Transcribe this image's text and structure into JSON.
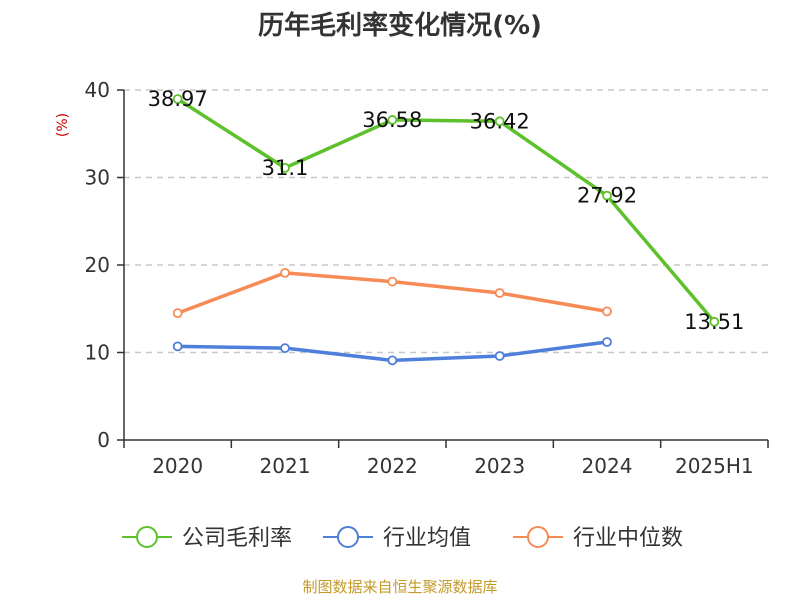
{
  "chart_data": {
    "type": "line",
    "title": "历年毛利率变化情况(%)",
    "ylabel": "(%)",
    "xlabel": "",
    "categories": [
      "2020",
      "2021",
      "2022",
      "2023",
      "2024",
      "2025H1"
    ],
    "ylim": [
      0,
      40
    ],
    "yticks": [
      0,
      10,
      20,
      30,
      40
    ],
    "grid": "horizontal dashed",
    "legend_position": "bottom",
    "series": [
      {
        "name": "公司毛利率",
        "color": "#5dc12b",
        "values": [
          38.97,
          31.1,
          36.58,
          36.42,
          27.92,
          13.51
        ],
        "labels": [
          "38.97",
          "31.1",
          "36.58",
          "36.42",
          "27.92",
          "13.51"
        ]
      },
      {
        "name": "行业均值",
        "color": "#4e7fdb",
        "values": [
          10.7,
          10.5,
          9.1,
          9.6,
          11.2,
          null
        ]
      },
      {
        "name": "行业中位数",
        "color": "#f78b55",
        "values": [
          14.5,
          19.1,
          18.1,
          16.8,
          14.7,
          null
        ]
      }
    ]
  },
  "footer": {
    "source": "制图数据来自恒生聚源数据库"
  }
}
